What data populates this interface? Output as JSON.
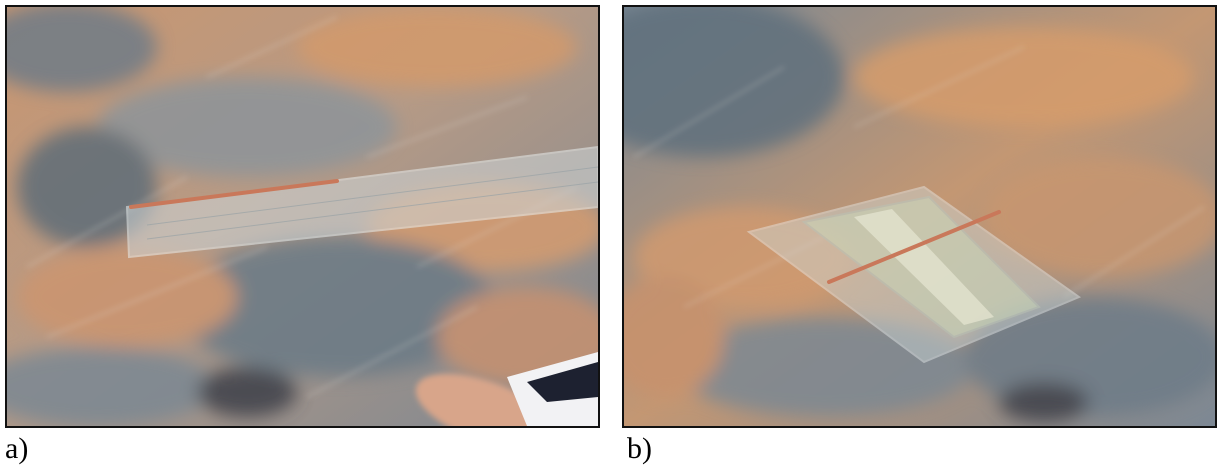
{
  "figure": {
    "panels": [
      {
        "caption": "a)",
        "depicts": "transparent-ruler-and-thin-rod-on-dusty-board"
      },
      {
        "caption": "b)",
        "depicts": "glass-plates-with-rod-on-dusty-board"
      }
    ],
    "colors": {
      "dust": "#c9916a",
      "board": "#6f7f8a",
      "border": "#111111"
    }
  }
}
